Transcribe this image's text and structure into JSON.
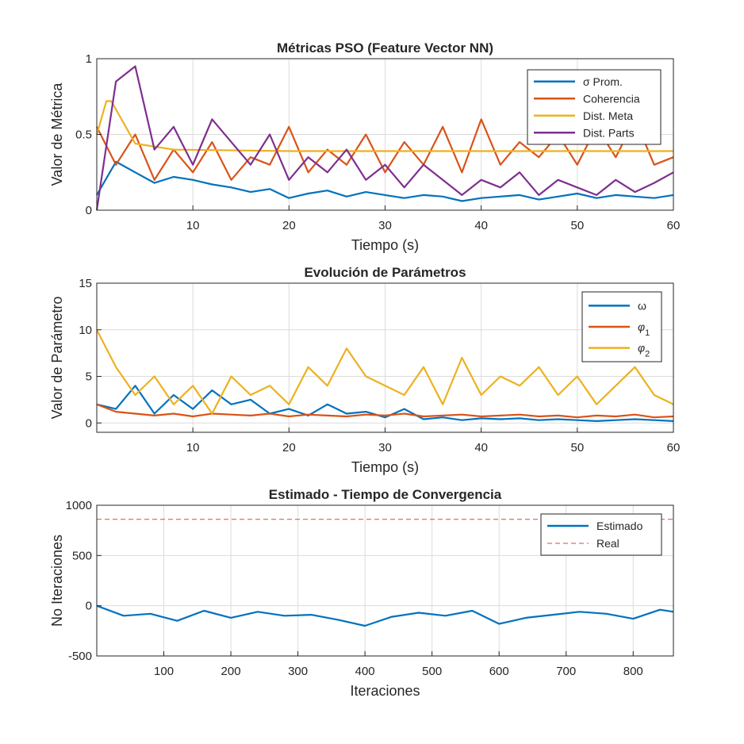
{
  "colors": {
    "blue": "#0072BD",
    "orange": "#D95319",
    "yellow": "#EDB120",
    "purple": "#7E2F8E",
    "real": "#E8423A"
  },
  "chart_data": [
    {
      "type": "line",
      "title": "Métricas PSO (Feature Vector NN)",
      "xlabel": "Tiempo (s)",
      "ylabel": "Valor de Métrica",
      "xlim": [
        0,
        60
      ],
      "ylim": [
        0,
        1
      ],
      "xticks": [
        "10",
        "20",
        "30",
        "40",
        "50",
        "60"
      ],
      "yticks": [
        "0",
        "0.5",
        "1"
      ],
      "grid": true,
      "legend": "top-right",
      "series": [
        {
          "name": "σ Prom.",
          "color": "#0072BD",
          "x": [
            0,
            2,
            4,
            6,
            8,
            10,
            12,
            14,
            16,
            18,
            20,
            22,
            24,
            26,
            28,
            30,
            32,
            34,
            36,
            38,
            40,
            42,
            44,
            46,
            48,
            50,
            52,
            54,
            56,
            58,
            60
          ],
          "values": [
            0.1,
            0.32,
            0.25,
            0.18,
            0.22,
            0.2,
            0.17,
            0.15,
            0.12,
            0.14,
            0.08,
            0.11,
            0.13,
            0.09,
            0.12,
            0.1,
            0.08,
            0.1,
            0.09,
            0.06,
            0.08,
            0.09,
            0.1,
            0.07,
            0.09,
            0.11,
            0.08,
            0.1,
            0.09,
            0.08,
            0.1
          ]
        },
        {
          "name": "Coherencia",
          "color": "#D95319",
          "x": [
            0,
            2,
            4,
            6,
            8,
            10,
            12,
            14,
            16,
            18,
            20,
            22,
            24,
            26,
            28,
            30,
            32,
            34,
            36,
            38,
            40,
            42,
            44,
            46,
            48,
            50,
            52,
            54,
            56,
            58,
            60
          ],
          "values": [
            0.55,
            0.3,
            0.5,
            0.2,
            0.4,
            0.25,
            0.45,
            0.2,
            0.35,
            0.3,
            0.55,
            0.25,
            0.4,
            0.3,
            0.5,
            0.25,
            0.45,
            0.3,
            0.55,
            0.25,
            0.6,
            0.3,
            0.45,
            0.35,
            0.5,
            0.3,
            0.55,
            0.35,
            0.6,
            0.3,
            0.35
          ]
        },
        {
          "name": "Dist. Meta",
          "color": "#EDB120",
          "x": [
            0,
            1,
            1.5,
            4,
            8,
            20,
            30,
            40,
            50,
            60
          ],
          "values": [
            0.5,
            0.72,
            0.72,
            0.44,
            0.4,
            0.39,
            0.39,
            0.39,
            0.39,
            0.39
          ]
        },
        {
          "name": "Dist. Parts",
          "color": "#7E2F8E",
          "x": [
            0,
            2,
            4,
            6,
            8,
            10,
            12,
            14,
            16,
            18,
            20,
            22,
            24,
            26,
            28,
            30,
            32,
            34,
            36,
            38,
            40,
            42,
            44,
            46,
            48,
            50,
            52,
            54,
            56,
            58,
            60
          ],
          "values": [
            0.0,
            0.85,
            0.95,
            0.4,
            0.55,
            0.3,
            0.6,
            0.45,
            0.3,
            0.5,
            0.2,
            0.35,
            0.25,
            0.4,
            0.2,
            0.3,
            0.15,
            0.3,
            0.2,
            0.1,
            0.2,
            0.15,
            0.25,
            0.1,
            0.2,
            0.15,
            0.1,
            0.2,
            0.12,
            0.18,
            0.25
          ]
        }
      ]
    },
    {
      "type": "line",
      "title": "Evolución de Parámetros",
      "xlabel": "Tiempo (s)",
      "ylabel": "Valor de Parámetro",
      "xlim": [
        0,
        60
      ],
      "ylim": [
        -1,
        15
      ],
      "xticks": [
        "10",
        "20",
        "30",
        "40",
        "50",
        "60"
      ],
      "yticks": [
        "0",
        "5",
        "10",
        "15"
      ],
      "grid": true,
      "legend": "top-right",
      "series": [
        {
          "name": "ω",
          "color": "#0072BD",
          "x": [
            0,
            2,
            4,
            6,
            8,
            10,
            12,
            14,
            16,
            18,
            20,
            22,
            24,
            26,
            28,
            30,
            32,
            34,
            36,
            38,
            40,
            42,
            44,
            46,
            48,
            50,
            52,
            54,
            56,
            58,
            60
          ],
          "values": [
            2,
            1.5,
            4,
            1,
            3,
            1.5,
            3.5,
            2,
            2.5,
            1,
            1.5,
            0.8,
            2,
            1,
            1.2,
            0.6,
            1.5,
            0.4,
            0.6,
            0.3,
            0.5,
            0.4,
            0.5,
            0.3,
            0.4,
            0.3,
            0.2,
            0.3,
            0.4,
            0.3,
            0.2
          ]
        },
        {
          "name": "φ_1",
          "color": "#D95319",
          "x": [
            0,
            2,
            4,
            6,
            8,
            10,
            12,
            14,
            16,
            18,
            20,
            22,
            24,
            26,
            28,
            30,
            32,
            34,
            36,
            38,
            40,
            42,
            44,
            46,
            48,
            50,
            52,
            54,
            56,
            58,
            60
          ],
          "values": [
            2,
            1.2,
            1,
            0.8,
            1,
            0.7,
            1,
            0.9,
            0.8,
            1,
            0.7,
            0.9,
            0.8,
            0.7,
            0.9,
            0.8,
            1,
            0.7,
            0.8,
            0.9,
            0.7,
            0.8,
            0.9,
            0.7,
            0.8,
            0.6,
            0.8,
            0.7,
            0.9,
            0.6,
            0.7
          ]
        },
        {
          "name": "φ_2",
          "color": "#EDB120",
          "x": [
            0,
            2,
            4,
            6,
            8,
            10,
            12,
            14,
            16,
            18,
            20,
            22,
            24,
            26,
            28,
            30,
            32,
            34,
            36,
            38,
            40,
            42,
            44,
            46,
            48,
            50,
            52,
            54,
            56,
            58,
            60
          ],
          "values": [
            10,
            6,
            3,
            5,
            2,
            4,
            1,
            5,
            3,
            4,
            2,
            6,
            4,
            8,
            5,
            4,
            3,
            6,
            2,
            7,
            3,
            5,
            4,
            6,
            3,
            5,
            2,
            4,
            6,
            3,
            2
          ]
        }
      ]
    },
    {
      "type": "line",
      "title": "Estimado - Tiempo de Convergencia",
      "xlabel": "Iteraciones",
      "ylabel": "No Iteraciones",
      "xlim": [
        0,
        860
      ],
      "ylim": [
        -500,
        1000
      ],
      "xticks": [
        "100",
        "200",
        "300",
        "400",
        "500",
        "600",
        "700",
        "800"
      ],
      "yticks": [
        "-500",
        "0",
        "500",
        "1000"
      ],
      "grid": true,
      "legend": "top-right",
      "series": [
        {
          "name": "Estimado",
          "color": "#0072BD",
          "x": [
            0,
            40,
            80,
            120,
            160,
            200,
            240,
            280,
            320,
            360,
            400,
            440,
            480,
            520,
            560,
            600,
            640,
            680,
            720,
            760,
            800,
            840,
            860
          ],
          "values": [
            0,
            -100,
            -80,
            -150,
            -50,
            -120,
            -60,
            -100,
            -90,
            -140,
            -200,
            -110,
            -70,
            -100,
            -50,
            -180,
            -120,
            -90,
            -60,
            -80,
            -130,
            -40,
            -60
          ]
        },
        {
          "name": "Real",
          "color": "#E8423A",
          "dashed": true,
          "x": [
            0,
            860
          ],
          "values": [
            860,
            860
          ]
        }
      ]
    }
  ]
}
